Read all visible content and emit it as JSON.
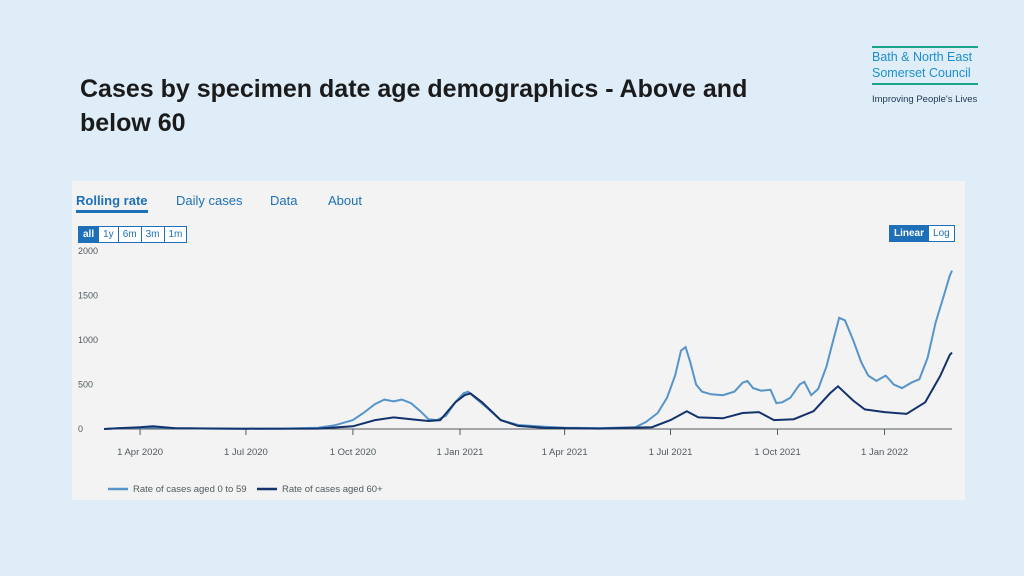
{
  "slide": {
    "title": "Cases by specimen date age demographics - Above and below 60"
  },
  "logo": {
    "line1": "Bath & North East",
    "line2": "Somerset Council",
    "tagline": "Improving People's Lives"
  },
  "tabs": [
    "Rolling rate",
    "Daily cases",
    "Data",
    "About"
  ],
  "range_buttons": [
    "all",
    "1y",
    "6m",
    "3m",
    "1m"
  ],
  "scale_buttons": [
    "Linear",
    "Log"
  ],
  "colors": {
    "series_0_59": "#5694ca",
    "series_60_plus": "#12336b",
    "accent": "#1d70b8"
  },
  "chart_data": {
    "type": "line",
    "ylim": [
      0,
      2000
    ],
    "yticks": [
      0,
      500,
      1000,
      1500,
      2000
    ],
    "xlim": [
      "2020-03-01",
      "2022-02-28"
    ],
    "xticks": [
      {
        "date": "2020-04-01",
        "label": "1 Apr 2020"
      },
      {
        "date": "2020-07-01",
        "label": "1 Jul 2020"
      },
      {
        "date": "2020-10-01",
        "label": "1 Oct 2020"
      },
      {
        "date": "2021-01-01",
        "label": "1 Jan 2021"
      },
      {
        "date": "2021-04-01",
        "label": "1 Apr 2021"
      },
      {
        "date": "2021-07-01",
        "label": "1 Jul 2021"
      },
      {
        "date": "2021-10-01",
        "label": "1 Oct 2021"
      },
      {
        "date": "2022-01-01",
        "label": "1 Jan 2022"
      }
    ],
    "legend_position": "bottom-left",
    "series": [
      {
        "name": "Rate of cases aged 0 to 59",
        "points": [
          [
            "2020-03-01",
            0
          ],
          [
            "2020-03-15",
            10
          ],
          [
            "2020-04-01",
            15
          ],
          [
            "2020-04-15",
            18
          ],
          [
            "2020-05-01",
            10
          ],
          [
            "2020-06-01",
            4
          ],
          [
            "2020-07-01",
            3
          ],
          [
            "2020-08-01",
            5
          ],
          [
            "2020-09-01",
            15
          ],
          [
            "2020-09-15",
            40
          ],
          [
            "2020-10-01",
            100
          ],
          [
            "2020-10-10",
            180
          ],
          [
            "2020-10-20",
            280
          ],
          [
            "2020-10-28",
            330
          ],
          [
            "2020-11-05",
            310
          ],
          [
            "2020-11-12",
            330
          ],
          [
            "2020-11-20",
            290
          ],
          [
            "2020-11-28",
            200
          ],
          [
            "2020-12-05",
            110
          ],
          [
            "2020-12-12",
            100
          ],
          [
            "2020-12-20",
            150
          ],
          [
            "2020-12-28",
            300
          ],
          [
            "2021-01-04",
            400
          ],
          [
            "2021-01-08",
            420
          ],
          [
            "2021-01-15",
            340
          ],
          [
            "2021-01-25",
            230
          ],
          [
            "2021-02-05",
            100
          ],
          [
            "2021-02-20",
            45
          ],
          [
            "2021-03-15",
            25
          ],
          [
            "2021-04-01",
            15
          ],
          [
            "2021-05-01",
            10
          ],
          [
            "2021-06-01",
            20
          ],
          [
            "2021-06-10",
            80
          ],
          [
            "2021-06-20",
            180
          ],
          [
            "2021-06-28",
            350
          ],
          [
            "2021-07-05",
            600
          ],
          [
            "2021-07-10",
            880
          ],
          [
            "2021-07-14",
            920
          ],
          [
            "2021-07-18",
            750
          ],
          [
            "2021-07-23",
            500
          ],
          [
            "2021-07-28",
            420
          ],
          [
            "2021-08-05",
            390
          ],
          [
            "2021-08-15",
            380
          ],
          [
            "2021-08-25",
            420
          ],
          [
            "2021-09-01",
            520
          ],
          [
            "2021-09-05",
            540
          ],
          [
            "2021-09-10",
            460
          ],
          [
            "2021-09-17",
            430
          ],
          [
            "2021-09-25",
            440
          ],
          [
            "2021-09-30",
            290
          ],
          [
            "2021-10-05",
            300
          ],
          [
            "2021-10-12",
            350
          ],
          [
            "2021-10-20",
            500
          ],
          [
            "2021-10-24",
            530
          ],
          [
            "2021-10-30",
            380
          ],
          [
            "2021-11-05",
            450
          ],
          [
            "2021-11-12",
            700
          ],
          [
            "2021-11-18",
            1000
          ],
          [
            "2021-11-23",
            1250
          ],
          [
            "2021-11-28",
            1220
          ],
          [
            "2021-12-05",
            1000
          ],
          [
            "2021-12-12",
            750
          ],
          [
            "2021-12-18",
            600
          ],
          [
            "2021-12-25",
            540
          ],
          [
            "2022-01-02",
            600
          ],
          [
            "2022-01-09",
            500
          ],
          [
            "2022-01-16",
            460
          ],
          [
            "2022-01-24",
            520
          ],
          [
            "2022-01-31",
            560
          ],
          [
            "2022-02-07",
            800
          ],
          [
            "2022-02-14",
            1200
          ],
          [
            "2022-02-21",
            1500
          ],
          [
            "2022-02-26",
            1720
          ],
          [
            "2022-02-28",
            1780
          ]
        ]
      },
      {
        "name": "Rate of cases aged 60+",
        "points": [
          [
            "2020-03-01",
            0
          ],
          [
            "2020-04-01",
            20
          ],
          [
            "2020-04-12",
            30
          ],
          [
            "2020-05-01",
            8
          ],
          [
            "2020-07-01",
            3
          ],
          [
            "2020-09-01",
            5
          ],
          [
            "2020-10-01",
            30
          ],
          [
            "2020-10-20",
            100
          ],
          [
            "2020-11-05",
            130
          ],
          [
            "2020-11-20",
            110
          ],
          [
            "2020-12-05",
            90
          ],
          [
            "2020-12-15",
            100
          ],
          [
            "2020-12-28",
            300
          ],
          [
            "2021-01-05",
            380
          ],
          [
            "2021-01-10",
            400
          ],
          [
            "2021-01-20",
            300
          ],
          [
            "2021-02-05",
            100
          ],
          [
            "2021-02-20",
            35
          ],
          [
            "2021-03-15",
            12
          ],
          [
            "2021-05-01",
            5
          ],
          [
            "2021-06-15",
            20
          ],
          [
            "2021-07-01",
            100
          ],
          [
            "2021-07-15",
            200
          ],
          [
            "2021-07-25",
            130
          ],
          [
            "2021-08-15",
            120
          ],
          [
            "2021-09-01",
            180
          ],
          [
            "2021-09-15",
            190
          ],
          [
            "2021-09-28",
            100
          ],
          [
            "2021-10-15",
            110
          ],
          [
            "2021-11-01",
            200
          ],
          [
            "2021-11-15",
            400
          ],
          [
            "2021-11-22",
            480
          ],
          [
            "2021-12-05",
            320
          ],
          [
            "2021-12-15",
            220
          ],
          [
            "2022-01-01",
            190
          ],
          [
            "2022-01-20",
            170
          ],
          [
            "2022-02-05",
            300
          ],
          [
            "2022-02-18",
            600
          ],
          [
            "2022-02-26",
            830
          ],
          [
            "2022-02-28",
            860
          ]
        ]
      }
    ]
  }
}
